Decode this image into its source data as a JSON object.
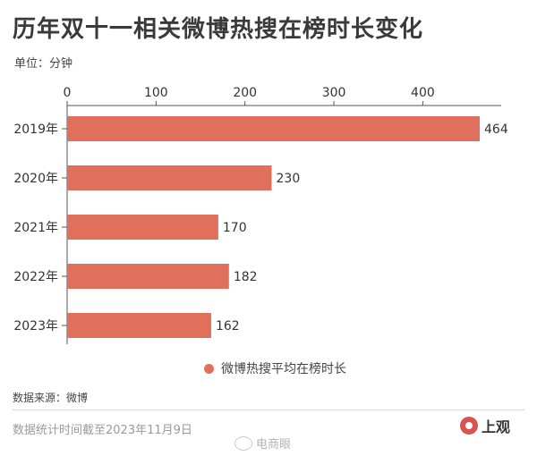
{
  "title": "历年双十一相关微博热搜在榜时长变化",
  "unit_label": "单位：分钟",
  "source": "数据来源：微博",
  "footnote": "数据统计时间截至2023年11月9日",
  "watermark": "电商眼",
  "brand": "上观",
  "colors": {
    "bar": "#e0705c",
    "axis": "#555555",
    "text": "#333333"
  },
  "chart_data": {
    "type": "bar",
    "orientation": "horizontal",
    "categories": [
      "2019年",
      "2020年",
      "2021年",
      "2022年",
      "2023年"
    ],
    "series": [
      {
        "name": "微博热搜平均在榜时长",
        "values": [
          464,
          230,
          170,
          182,
          162
        ]
      }
    ],
    "value_labels": [
      "464",
      "230",
      "170",
      "182",
      "162"
    ],
    "x_ticks": [
      0,
      100,
      200,
      300,
      400
    ],
    "xlim": [
      0,
      464
    ],
    "axis_position": "top",
    "legend_position": "bottom-center",
    "grid": false
  }
}
